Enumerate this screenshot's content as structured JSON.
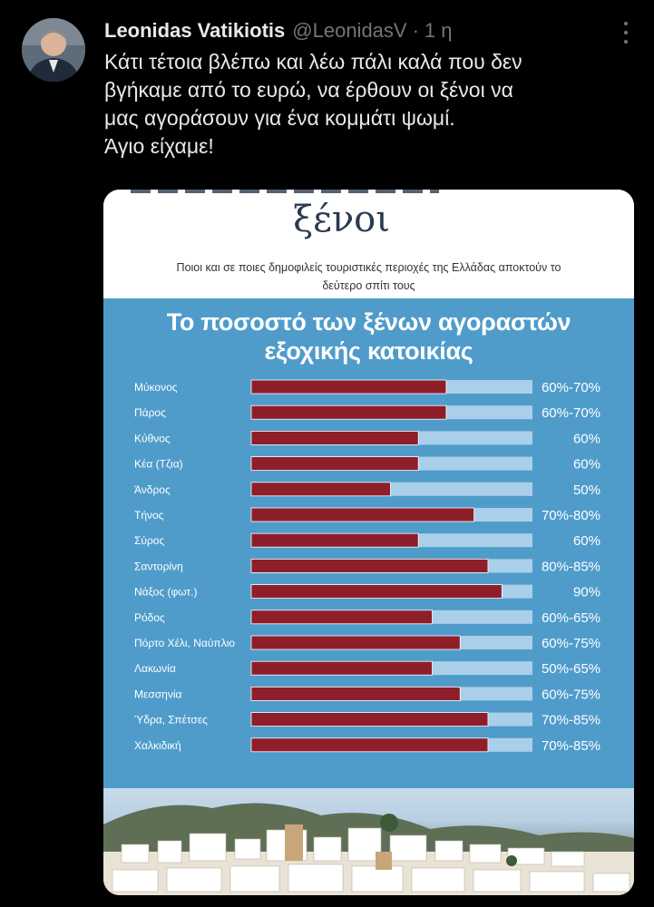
{
  "tweet": {
    "author_name": "Leonidas Vatikiotis",
    "author_handle": "@LeonidasV",
    "separator": "·",
    "time": "1 η",
    "text_lines": [
      "Κάτι τέτοια βλέπω και λέω πάλι καλά που δεν",
      "βγήκαμε από το ευρώ, να έρθουν οι ξένοι να",
      "μας αγοράσουν για ένα κομμάτι ψωμί.",
      "Άγιο είχαμε!"
    ]
  },
  "icons": {
    "avatar": "avatar-photo",
    "more": "more-options-icon"
  },
  "media": {
    "headline": "ξένοι",
    "subtitle_lines": [
      "Ποιοι και σε ποιες δημοφιλείς τουριστικές περιοχές της Ελλάδας αποκτούν το",
      "δεύτερο σπίτι τους"
    ],
    "chart_title_lines": [
      "Το ποσοστό των ξένων αγοραστών",
      "εξοχικής κατοικίας"
    ]
  },
  "colors": {
    "background": "#000000",
    "text": "#e7e9ea",
    "muted": "#71767b",
    "chart_bg": "#4f9ccb",
    "bar_fill": "#8e1e2a",
    "bar_track": "#a9d0e8"
  },
  "chart_data": {
    "type": "bar",
    "orientation": "horizontal",
    "title": "Το ποσοστό των ξένων αγοραστών εξοχικής κατοικίας",
    "categories": [
      "Μύκονος",
      "Πάρος",
      "Κύθνος",
      "Κέα (Τζια)",
      "Άνδρος",
      "Τήνος",
      "Σύρος",
      "Σαντορίνη",
      "Νάξος (φωτ.)",
      "Ρόδος",
      "Πόρτο Χέλι, Ναύπλιο",
      "Λακωνία",
      "Μεσσηνία",
      "Ύδρα, Σπέτσες",
      "Χαλκιδική"
    ],
    "value_labels": [
      "60%-70%",
      "60%-70%",
      "60%",
      "60%",
      "50%",
      "70%-80%",
      "60%",
      "80%-85%",
      "90%",
      "60%-65%",
      "60%-75%",
      "50%-65%",
      "60%-75%",
      "70%-85%",
      "70%-85%"
    ],
    "values": [
      70,
      70,
      60,
      60,
      50,
      80,
      60,
      85,
      90,
      65,
      75,
      65,
      75,
      85,
      85
    ],
    "xlim": [
      0,
      100
    ],
    "grid": false,
    "legend": "none"
  }
}
